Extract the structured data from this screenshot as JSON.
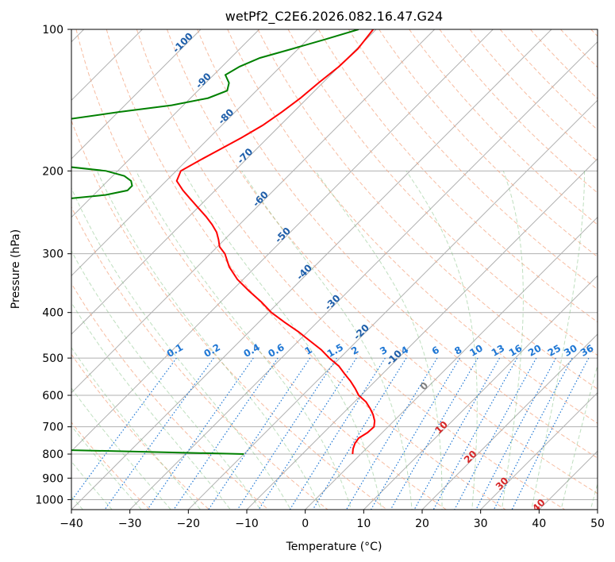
{
  "chart_data": {
    "type": "line",
    "subtype": "skew-T log-P diagram",
    "title": "wetPf2_C2E6.2026.082.16.47.G24",
    "xlabel": "Temperature (°C)",
    "ylabel": "Pressure (hPa)",
    "xlim": [
      -40,
      50
    ],
    "ylim": [
      1050,
      100
    ],
    "y_scale": "log",
    "grid": true,
    "x_ticks": [
      -40,
      -30,
      -20,
      -10,
      0,
      10,
      20,
      30,
      40,
      50
    ],
    "x_tick_labels": [
      "−40",
      "−30",
      "−20",
      "−10",
      "0",
      "10",
      "20",
      "30",
      "40",
      "50"
    ],
    "y_ticks": [
      100,
      200,
      300,
      400,
      500,
      600,
      700,
      800,
      900,
      1000
    ],
    "y_tick_labels": [
      "100",
      "200",
      "300",
      "400",
      "500",
      "600",
      "700",
      "800",
      "900",
      "1000"
    ],
    "series": [
      {
        "color": "#ff0000",
        "pressure": [
          100,
          110,
          120,
          130,
          140,
          150,
          160,
          170,
          180,
          190,
          200,
          210,
          220,
          230,
          240,
          250,
          260,
          270,
          280,
          290,
          300,
          320,
          340,
          360,
          380,
          400,
          420,
          440,
          460,
          480,
          500,
          520,
          540,
          560,
          580,
          600,
          620,
          640,
          660,
          680,
          700,
          720,
          740,
          760,
          780,
          800
        ],
        "temperature": [
          -70.5,
          -69.8,
          -70.0,
          -70.7,
          -71.2,
          -72.0,
          -73.0,
          -74.5,
          -76.2,
          -77.8,
          -79.2,
          -78.2,
          -75.5,
          -72.6,
          -69.8,
          -67.1,
          -64.7,
          -62.6,
          -61.0,
          -59.6,
          -57.5,
          -54.5,
          -51.0,
          -47.0,
          -43.0,
          -39.5,
          -35.5,
          -31.5,
          -28.0,
          -24.6,
          -21.8,
          -18.8,
          -16.5,
          -14.2,
          -12.2,
          -10.4,
          -8.0,
          -6.2,
          -4.6,
          -3.3,
          -2.4,
          -2.5,
          -3.1,
          -2.8,
          -2.2,
          -1.4
        ]
      },
      {
        "color": "#008000",
        "pressure": [
          100,
          105,
          110,
          115,
          120,
          125,
          130,
          135,
          140,
          145,
          150,
          155,
          160,
          165,
          170,
          175,
          180,
          185,
          190,
          195,
          200,
          205,
          210,
          215,
          220,
          225,
          230,
          235,
          240,
          245,
          250,
          255,
          260,
          265,
          270,
          275,
          280,
          285,
          290,
          295,
          300,
          310,
          320,
          330,
          340,
          350,
          360,
          370,
          380,
          390,
          400,
          410,
          420,
          430,
          440,
          450,
          460,
          470,
          480,
          490,
          500,
          510,
          520,
          540,
          560,
          580,
          600,
          620,
          640,
          660,
          680,
          700,
          720,
          740,
          760,
          780,
          800
        ],
        "dewpoint": [
          -73,
          -77,
          -81,
          -85,
          -87,
          -88,
          -86,
          -85,
          -87,
          -92,
          -100,
          -107,
          -111,
          -115,
          -119,
          -121,
          -122,
          -119,
          -111,
          -101,
          -92,
          -88,
          -86,
          -85,
          -85,
          -88,
          -95,
          -105,
          -114,
          -119,
          -119,
          -121,
          -124,
          -119,
          -114,
          -111,
          -109,
          -107,
          -105,
          -105,
          -104,
          -103,
          -100,
          -97,
          -93,
          -88,
          -86,
          -88,
          -93,
          -96,
          -94,
          -90,
          -85,
          -88,
          -95,
          -103,
          -112,
          -121,
          -124,
          -119,
          -123,
          -140,
          -168,
          -210,
          -225,
          -230,
          -200,
          -230,
          -250,
          -140,
          -210,
          -250,
          -180,
          -150,
          -100,
          -60,
          -20
        ]
      }
    ]
  }
}
